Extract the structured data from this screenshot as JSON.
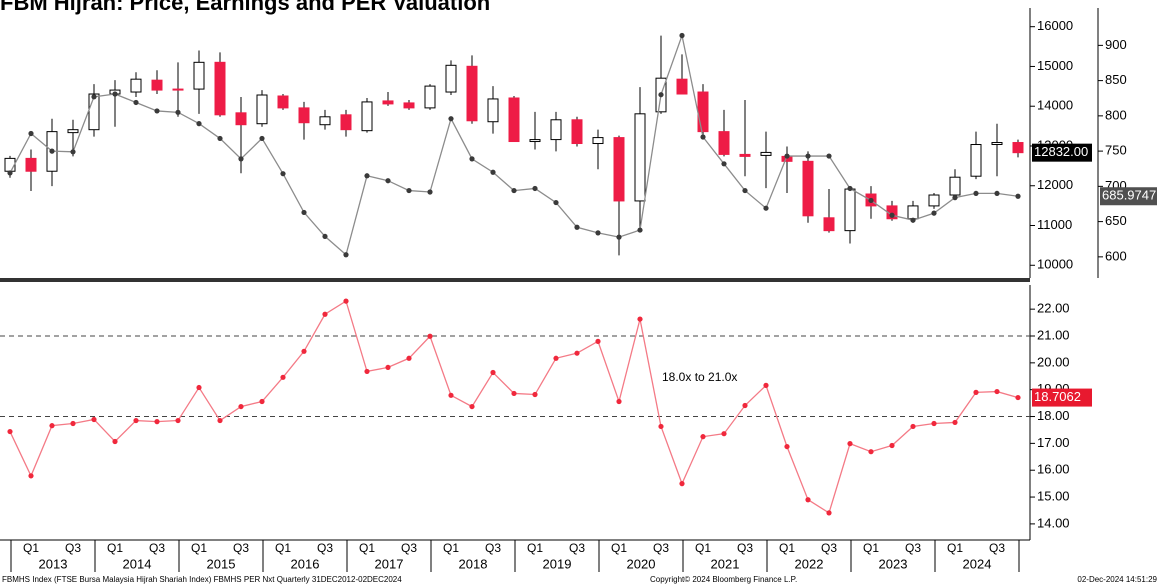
{
  "title": "FBM Hijrah: Price, Earnings and PER Valuation",
  "footer": {
    "left": "FBMHS Index (FTSE Bursa Malaysia Hijrah Shariah Index) FBMHS PER Nxt  Quarterly 31DEC2012-02DEC2024",
    "center": "Copyright© 2024 Bloomberg Finance L.P.",
    "right": "02-Dec-2024 14:51:29"
  },
  "x_axis": {
    "quarters": [
      null,
      "Q1",
      null,
      "Q3",
      null,
      "Q1",
      null,
      "Q3",
      null,
      "Q1",
      null,
      "Q3",
      null,
      "Q1",
      null,
      "Q3",
      null,
      "Q1",
      null,
      "Q3",
      null,
      "Q1",
      null,
      "Q3",
      null,
      "Q1",
      null,
      "Q3",
      null,
      "Q1",
      null,
      "Q3",
      null,
      "Q1",
      null,
      "Q3",
      null,
      "Q1",
      null,
      "Q3",
      null,
      "Q1",
      null,
      "Q3",
      null,
      "Q1",
      null,
      "Q3",
      null
    ],
    "years": [
      "2013",
      "2014",
      "2015",
      "2016",
      "2017",
      "2018",
      "2019",
      "2020",
      "2021",
      "2022",
      "2023",
      "2024"
    ]
  },
  "chart_data": [
    {
      "type": "candlestick",
      "color_up": "#ffffff",
      "color_down": "#ee1c46",
      "open": [
        12365,
        12688,
        12365,
        13336,
        13410,
        14307,
        14357,
        14655,
        14431,
        14431,
        15104,
        13834,
        13560,
        14257,
        13958,
        13535,
        13784,
        13385,
        14133,
        14083,
        13958,
        14357,
        15004,
        13610,
        14207,
        13112,
        13161,
        13659,
        13062,
        13211,
        11618,
        13859,
        14680,
        14357,
        13361,
        12788,
        12763,
        12738,
        12614,
        11194,
        10871,
        11792,
        11493,
        11170,
        11493,
        11767,
        12240,
        13037,
        13087
      ],
      "high": [
        12750,
        12913,
        13684,
        13659,
        14556,
        14655,
        14854,
        14904,
        15104,
        15402,
        15353,
        14232,
        14406,
        14307,
        14108,
        13908,
        13908,
        14207,
        14357,
        14157,
        14556,
        15154,
        15278,
        14506,
        14257,
        13859,
        13859,
        13734,
        13410,
        13261,
        14481,
        15776,
        15303,
        14556,
        13908,
        14157,
        13361,
        12987,
        12863,
        11917,
        11966,
        11991,
        11618,
        11618,
        11817,
        12414,
        13361,
        13560,
        13161
      ],
      "low": [
        12200,
        11867,
        11991,
        12738,
        13236,
        13485,
        14232,
        14307,
        13734,
        13809,
        13734,
        12315,
        13485,
        13908,
        13161,
        13410,
        13236,
        13336,
        14008,
        13908,
        13908,
        14282,
        13560,
        13311,
        13112,
        12913,
        12863,
        12987,
        12414,
        10248,
        10871,
        13809,
        14307,
        13286,
        12738,
        12240,
        11941,
        11817,
        11070,
        10821,
        10547,
        11170,
        11120,
        11070,
        11419,
        11717,
        12166,
        12240,
        12714
      ],
      "close": [
        12688,
        12365,
        13361,
        13410,
        14307,
        14406,
        14680,
        14406,
        14420,
        15104,
        13784,
        13535,
        14282,
        13958,
        13585,
        13734,
        13410,
        14108,
        14058,
        13958,
        14506,
        15029,
        13634,
        14183,
        13112,
        13161,
        13659,
        13062,
        13211,
        11618,
        13809,
        14705,
        14307,
        13361,
        12788,
        12738,
        12838,
        12614,
        11244,
        10871,
        11917,
        11493,
        11170,
        11493,
        11767,
        12215,
        13037,
        13087,
        12832
      ],
      "last_label": "12832.00",
      "label_box": "#000000",
      "ylim": [
        9680,
        16470
      ],
      "yticks": [
        10000,
        11000,
        12000,
        13000,
        14000,
        15000,
        16000
      ]
    },
    {
      "type": "line",
      "axis": "y2",
      "color": "#8c8c8c",
      "marker_color": "#3a3a3a",
      "values": [
        719,
        775,
        750,
        749,
        827,
        831,
        819,
        807,
        805,
        789,
        768,
        739,
        768,
        718,
        663,
        629,
        603,
        715,
        708,
        694,
        692,
        796,
        739,
        720,
        694,
        697,
        677,
        642,
        634,
        628,
        638,
        830,
        914,
        770,
        732,
        694,
        669,
        743,
        743,
        743,
        697,
        680,
        659,
        652,
        662,
        684,
        690,
        690,
        685.9747
      ],
      "last_label": "685.9747",
      "label_box": "#505050",
      "y2lim": [
        570,
        953
      ],
      "y2ticks": [
        600,
        650,
        700,
        750,
        800,
        850,
        900
      ]
    },
    {
      "type": "line",
      "color": "#f47a86",
      "marker_color": "#f0283c",
      "values": [
        17.44,
        15.79,
        17.66,
        17.74,
        17.89,
        17.07,
        17.85,
        17.81,
        17.85,
        19.08,
        17.85,
        18.37,
        18.56,
        19.46,
        20.43,
        21.81,
        22.3,
        19.68,
        19.83,
        20.17,
        20.99,
        18.79,
        18.37,
        19.64,
        18.86,
        18.82,
        20.17,
        20.36,
        20.8,
        18.56,
        21.63,
        17.63,
        15.5,
        17.25,
        17.36,
        18.41,
        19.16,
        16.88,
        14.9,
        14.41,
        16.99,
        16.69,
        16.92,
        17.63,
        17.74,
        17.78,
        18.9,
        18.93,
        18.7062
      ],
      "last_label": "18.7062",
      "label_box": "#e8192f",
      "ref_lines": [
        18,
        21
      ],
      "annotation": "18.0x to 21.0x",
      "ylim": [
        13.4,
        22.9
      ],
      "yticks": [
        {
          "value": 14,
          "label": "14.00"
        },
        {
          "value": 15,
          "label": "15.00"
        },
        {
          "value": 16,
          "label": "16.00"
        },
        {
          "value": 17,
          "label": "17.00"
        },
        {
          "value": 18,
          "label": "18.00"
        },
        {
          "value": 19,
          "label": "19.00"
        },
        {
          "value": 20,
          "label": "20.00"
        },
        {
          "value": 21,
          "label": "21.00"
        },
        {
          "value": 22,
          "label": "22.00"
        }
      ]
    }
  ]
}
